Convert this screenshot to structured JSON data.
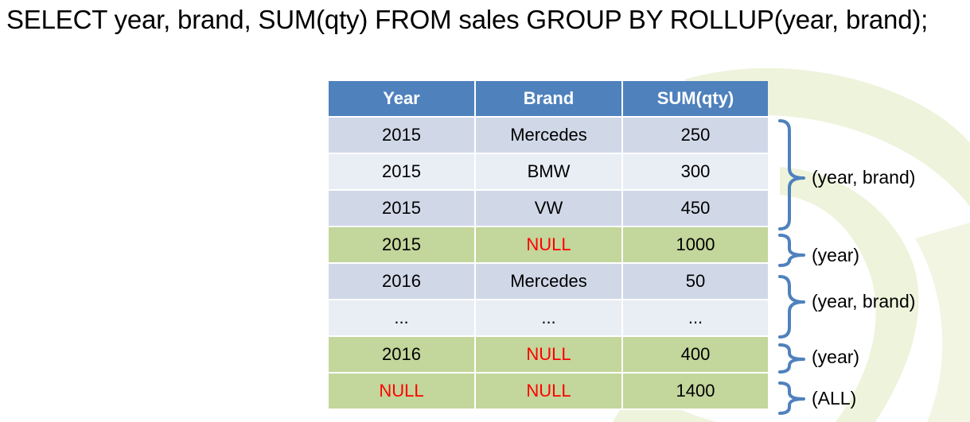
{
  "sql_query": "SELECT year, brand, SUM(qty) FROM sales GROUP BY ROLLUP(year, brand);",
  "table": {
    "headers": [
      "Year",
      "Brand",
      "SUM(qty)"
    ],
    "rows": [
      {
        "year": "2015",
        "brand": "Mercedes",
        "sum": "250",
        "null_cells": []
      },
      {
        "year": "2015",
        "brand": "BMW",
        "sum": "300",
        "null_cells": []
      },
      {
        "year": "2015",
        "brand": "VW",
        "sum": "450",
        "null_cells": []
      },
      {
        "year": "2015",
        "brand": "NULL",
        "sum": "1000",
        "null_cells": [
          "brand"
        ]
      },
      {
        "year": "2016",
        "brand": "Mercedes",
        "sum": "50",
        "null_cells": []
      },
      {
        "year": "...",
        "brand": "...",
        "sum": "...",
        "null_cells": []
      },
      {
        "year": "2016",
        "brand": "NULL",
        "sum": "400",
        "null_cells": [
          "brand"
        ]
      },
      {
        "year": "NULL",
        "brand": "NULL",
        "sum": "1400",
        "null_cells": [
          "year",
          "brand"
        ]
      }
    ]
  },
  "groups": [
    {
      "label": "(year, brand)"
    },
    {
      "label": "(year)"
    },
    {
      "label": "(year, brand)"
    },
    {
      "label": "(year)"
    },
    {
      "label": "(ALL)"
    }
  ],
  "colors": {
    "header_bg": "#4f81bd",
    "row_dark": "#d0d8e8",
    "row_light": "#e9edf4",
    "row_subtotal": "#c3d69b",
    "null_text": "#ff0000",
    "bracket": "#4f81bd",
    "watermark": "#eef3dc"
  }
}
